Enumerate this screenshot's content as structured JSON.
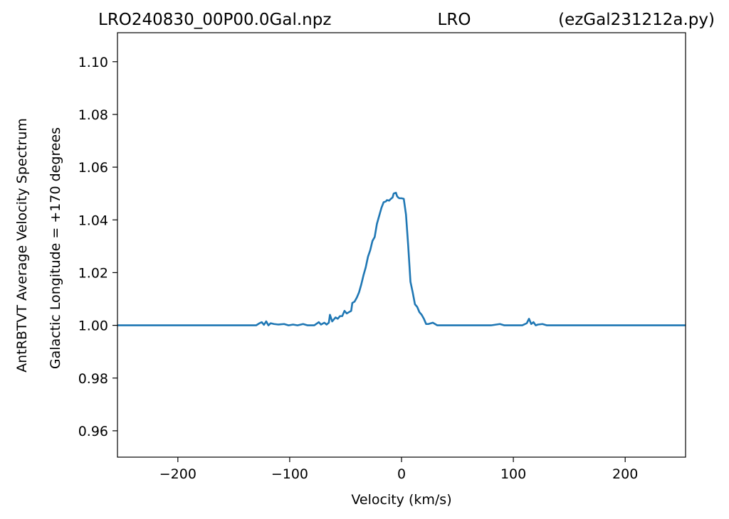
{
  "title": {
    "left": "LRO240830_00P00.0Gal.npz",
    "center": "LRO",
    "right": "(ezGal231212a.py)"
  },
  "chart_data": {
    "type": "line",
    "title": "LRO240830_00P00.0Gal.npz LRO (ezGal231212a.py)",
    "xlabel": "Velocity (km/s)",
    "ylabel_lines": [
      "AntRBTVT Average Velocity Spectrum",
      "Galactic Longitude = +170 degrees"
    ],
    "xlim": [
      -254,
      254
    ],
    "ylim": [
      0.95,
      1.111
    ],
    "x_ticks": [
      -200,
      -100,
      0,
      100,
      200
    ],
    "x_tick_labels": [
      "−200",
      "−100",
      "0",
      "100",
      "200"
    ],
    "y_ticks": [
      0.96,
      0.98,
      1.0,
      1.02,
      1.04,
      1.06,
      1.08,
      1.1
    ],
    "y_tick_labels": [
      "0.96",
      "0.98",
      "1.00",
      "1.02",
      "1.04",
      "1.06",
      "1.08",
      "1.10"
    ],
    "grid": false,
    "legend": "none",
    "series": [
      {
        "color": "#1f77b4",
        "x": [
          -254,
          -130,
          -127,
          -125,
          -123,
          -121,
          -119,
          -117,
          -114,
          -110,
          -105,
          -101,
          -97,
          -93,
          -88,
          -84,
          -78,
          -74,
          -72,
          -69,
          -67,
          -65,
          -64,
          -62,
          -61,
          -59,
          -57,
          -55,
          -53,
          -51,
          -49,
          -47,
          -45,
          -44,
          -42,
          -40,
          -38,
          -36,
          -34,
          -32,
          -30,
          -28,
          -26,
          -24,
          -23,
          -22,
          -20,
          -18,
          -16,
          -14,
          -13,
          -11,
          -10,
          -8,
          -7,
          -5,
          -4,
          -3,
          -2,
          0,
          2,
          4,
          6,
          8,
          10,
          12,
          14,
          16,
          18,
          20,
          22,
          24,
          28,
          32,
          36,
          40,
          50,
          60,
          70,
          80,
          88,
          92,
          100,
          108,
          112,
          114,
          116,
          118,
          120,
          122,
          126,
          130,
          140,
          254
        ],
        "values": [
          1.0,
          1.0,
          1.0008,
          1.0012,
          1.0002,
          1.0015,
          1.0,
          1.0008,
          1.0005,
          1.0003,
          1.0005,
          1.0,
          1.0003,
          1.0,
          1.0005,
          1.0,
          1.0,
          1.0012,
          1.0003,
          1.001,
          1.0003,
          1.001,
          1.004,
          1.0015,
          1.002,
          1.003,
          1.0025,
          1.0035,
          1.0035,
          1.0055,
          1.0045,
          1.005,
          1.0055,
          1.0085,
          1.009,
          1.0105,
          1.0125,
          1.0155,
          1.019,
          1.022,
          1.026,
          1.0285,
          1.032,
          1.0335,
          1.036,
          1.0385,
          1.0415,
          1.0445,
          1.0467,
          1.047,
          1.0475,
          1.0473,
          1.0478,
          1.0485,
          1.05,
          1.0503,
          1.049,
          1.0485,
          1.0482,
          1.0482,
          1.048,
          1.042,
          1.03,
          1.0165,
          1.0125,
          1.008,
          1.007,
          1.005,
          1.004,
          1.0025,
          1.0005,
          1.0005,
          1.001,
          1.0,
          1.0,
          1.0,
          1.0,
          1.0,
          1.0,
          1.0,
          1.0005,
          1.0,
          1.0,
          1.0,
          1.0008,
          1.0025,
          1.0005,
          1.0012,
          1.0,
          1.0003,
          1.0005,
          1.0,
          1.0,
          1.0
        ]
      }
    ]
  }
}
